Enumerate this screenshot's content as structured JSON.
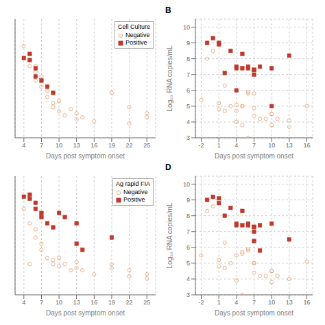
{
  "chart_data": [
    {
      "type": "scatter",
      "xlabel": "Days post symptom onset",
      "legend_title": "Cell Culture",
      "legend": "upper right",
      "grid": true,
      "tick_labels": "x",
      "xlim": [
        2.5,
        26.5
      ],
      "xticks": [
        4,
        7,
        10,
        13,
        16,
        19,
        22,
        25
      ],
      "ylim": [
        3.0,
        8.8
      ],
      "yticks": [],
      "series": [
        {
          "name": "Negative",
          "color": "#E8A87C",
          "marker": "circle",
          "x": [
            4,
            5,
            5,
            6,
            6,
            6,
            7,
            7,
            8,
            8,
            9,
            9,
            10,
            10,
            11,
            12,
            13,
            13,
            14,
            16,
            19,
            22,
            22,
            25,
            25
          ],
          "values": [
            7.5,
            6.8,
            6.5,
            6.5,
            6.2,
            5.8,
            6.0,
            5.5,
            5.3,
            5.0,
            4.7,
            4.5,
            4.8,
            4.3,
            4.1,
            4.4,
            4.2,
            3.9,
            4.0,
            3.8,
            5.2,
            4.5,
            3.7,
            4.2,
            4.0
          ]
        },
        {
          "name": "Positive",
          "color": "#C0392B",
          "marker": "square",
          "x": [
            4,
            5,
            5,
            6,
            6,
            7,
            8,
            9
          ],
          "values": [
            6.9,
            7.1,
            6.8,
            6.4,
            6.0,
            5.8,
            5.5,
            5.2
          ]
        }
      ]
    },
    {
      "type": "scatter",
      "title": "B",
      "xlabel": "Days post symptom onset",
      "ylabel": "Log₁₀ RNA copies/mL",
      "grid": true,
      "xlim": [
        -3,
        17
      ],
      "xticks": [
        -2,
        1,
        4,
        7,
        10,
        13,
        16
      ],
      "ylim": [
        3.0,
        10.5
      ],
      "yticks": [
        3,
        4,
        5,
        6,
        7,
        8,
        9,
        10
      ],
      "series": [
        {
          "color": "#E8A87C",
          "marker": "circle",
          "x": [
            -2,
            -1,
            0,
            1,
            1,
            2,
            2,
            3,
            4,
            4,
            4,
            5,
            5,
            5,
            6,
            6,
            6,
            7,
            7,
            7,
            8,
            9,
            10,
            10,
            10,
            11,
            13,
            13,
            16
          ],
          "values": [
            5.4,
            8.0,
            8.5,
            5.2,
            4.8,
            6.3,
            4.7,
            5.0,
            4.7,
            5.1,
            4.0,
            5.0,
            5.0,
            3.8,
            5.8,
            5.9,
            3.0,
            4.9,
            5.8,
            4.4,
            4.2,
            4.2,
            4.5,
            4.5,
            3.8,
            4.2,
            4.1,
            3.7,
            5.0
          ]
        },
        {
          "color": "#C0392B",
          "marker": "square",
          "x": [
            -1,
            0,
            1,
            1,
            2,
            3,
            4,
            4,
            4,
            5,
            5,
            6,
            6,
            7,
            7,
            7,
            7,
            8,
            10,
            10,
            13
          ],
          "values": [
            9.0,
            9.3,
            9.0,
            8.9,
            7.1,
            8.5,
            7.5,
            7.4,
            6.0,
            8.3,
            7.4,
            7.5,
            7.4,
            7.3,
            7.3,
            7.3,
            7.0,
            7.5,
            7.4,
            5.0,
            8.2
          ]
        }
      ]
    },
    {
      "type": "scatter",
      "xlabel": "Days post symptom onset",
      "legend_title": "Ag rapid FIA",
      "legend": "upper right",
      "grid": true,
      "tick_labels": "x",
      "xlim": [
        2.5,
        26.5
      ],
      "xticks": [
        4,
        7,
        10,
        13,
        16,
        19,
        22,
        25
      ],
      "ylim": [
        3.0,
        8.8
      ],
      "yticks": [],
      "series": [
        {
          "name": "Negative",
          "color": "#E8A87C",
          "marker": "circle",
          "x": [
            4,
            5,
            5,
            6,
            6,
            7,
            7,
            8,
            9,
            9,
            10,
            10,
            11,
            12,
            13,
            13,
            14,
            16,
            19,
            19,
            22,
            22,
            25,
            25
          ],
          "values": [
            7.2,
            6.5,
            4.5,
            6.2,
            5.8,
            5.5,
            5.2,
            4.8,
            4.7,
            4.5,
            4.8,
            4.4,
            4.5,
            4.2,
            4.6,
            4.3,
            4.2,
            4.0,
            4.5,
            4.3,
            4.2,
            3.9,
            4.0,
            3.8
          ]
        },
        {
          "name": "Positive",
          "color": "#C0392B",
          "marker": "square",
          "x": [
            4,
            5,
            5,
            6,
            6,
            7,
            7,
            8,
            9,
            10,
            11,
            13,
            13,
            14,
            19
          ],
          "values": [
            7.8,
            7.9,
            7.7,
            7.5,
            7.2,
            7.0,
            6.8,
            6.5,
            6.3,
            7.0,
            6.8,
            6.5,
            5.5,
            5.2,
            5.8
          ]
        }
      ]
    },
    {
      "type": "scatter",
      "title": "D",
      "xlabel": "Days post symptom onset",
      "ylabel": "Log₁₀ RNA copies/mL",
      "grid": true,
      "xlim": [
        -3,
        17
      ],
      "xticks": [
        -2,
        1,
        4,
        7,
        10,
        13,
        16
      ],
      "ylim": [
        3.0,
        10.5
      ],
      "yticks": [
        3,
        4,
        5,
        6,
        7,
        8,
        9,
        10
      ],
      "series": [
        {
          "color": "#E8A87C",
          "marker": "circle",
          "x": [
            -2,
            -1,
            0,
            1,
            1,
            2,
            2,
            3,
            4,
            4,
            5,
            5,
            5,
            6,
            6,
            7,
            7,
            7,
            8,
            9,
            10,
            10,
            10,
            11,
            13,
            16
          ],
          "values": [
            5.5,
            8.3,
            8.6,
            5.2,
            4.8,
            6.3,
            4.7,
            5.0,
            5.5,
            3.9,
            5.7,
            5.6,
            3.0,
            5.9,
            5.8,
            5.0,
            4.4,
            5.0,
            4.2,
            4.2,
            4.5,
            4.5,
            3.8,
            4.2,
            4.0,
            5.1
          ]
        },
        {
          "color": "#C0392B",
          "marker": "square",
          "x": [
            -1,
            0,
            1,
            1,
            2,
            3,
            4,
            4,
            5,
            5,
            6,
            6,
            7,
            7,
            7,
            7,
            8,
            8,
            10,
            13
          ],
          "values": [
            9.0,
            9.2,
            9.1,
            8.8,
            8.0,
            8.5,
            7.5,
            7.4,
            8.3,
            7.4,
            7.5,
            7.4,
            7.3,
            7.3,
            7.0,
            6.4,
            7.4,
            5.8,
            7.5,
            6.5
          ]
        }
      ]
    }
  ]
}
